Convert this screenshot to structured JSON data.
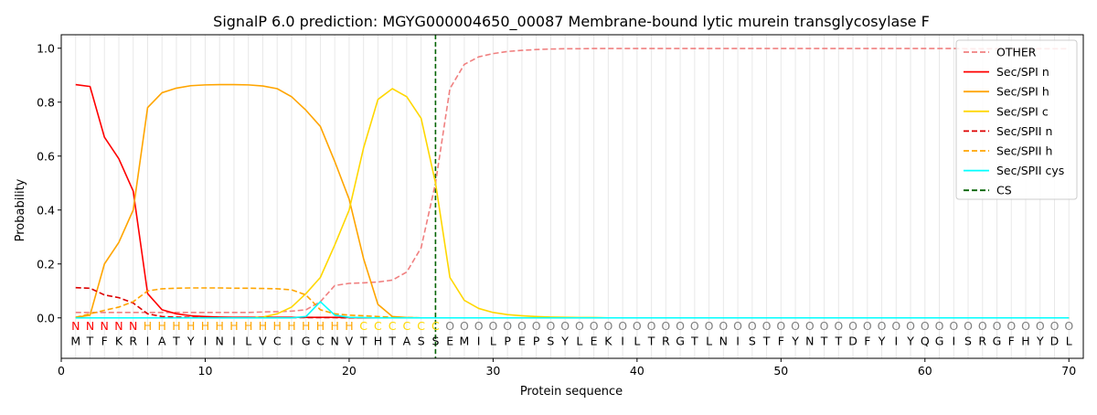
{
  "chart_data": {
    "type": "line",
    "title": "SignalP 6.0 prediction: MGYG000004650_00087 Membrane-bound lytic murein transglycosylase F",
    "xlabel": "Protein sequence",
    "ylabel": "Probability",
    "xlim": [
      0,
      71
    ],
    "ylim": [
      -0.15,
      1.05
    ],
    "xticks": [
      0,
      10,
      20,
      30,
      40,
      50,
      60,
      70
    ],
    "yticks": [
      0.0,
      0.2,
      0.4,
      0.6,
      0.8,
      1.0
    ],
    "xtick_labels": [
      "0",
      "10",
      "20",
      "30",
      "40",
      "50",
      "60",
      "70"
    ],
    "ytick_labels": [
      "0.0",
      "0.2",
      "0.4",
      "0.6",
      "0.8",
      "1.0"
    ],
    "grid": "vertical lines at every residue position",
    "legend_position": "top-right",
    "cleavage_site": 26,
    "sequence": [
      "M",
      "T",
      "F",
      "K",
      "R",
      "I",
      "A",
      "T",
      "Y",
      "I",
      "N",
      "I",
      "L",
      "V",
      "C",
      "I",
      "G",
      "C",
      "N",
      "V",
      "T",
      "H",
      "T",
      "A",
      "S",
      "S",
      "E",
      "M",
      "I",
      "L",
      "P",
      "E",
      "P",
      "S",
      "Y",
      "L",
      "E",
      "K",
      "I",
      "L",
      "T",
      "R",
      "G",
      "T",
      "L",
      "N",
      "I",
      "S",
      "T",
      "F",
      "Y",
      "N",
      "T",
      "T",
      "D",
      "F",
      "Y",
      "I",
      "Y",
      "Q",
      "G",
      "I",
      "S",
      "R",
      "G",
      "F",
      "H",
      "Y",
      "D",
      "L"
    ],
    "region_labels": [
      "N",
      "N",
      "N",
      "N",
      "N",
      "H",
      "H",
      "H",
      "H",
      "H",
      "H",
      "H",
      "H",
      "H",
      "H",
      "H",
      "H",
      "H",
      "H",
      "H",
      "C",
      "C",
      "C",
      "C",
      "C",
      "C",
      "O",
      "O",
      "O",
      "O",
      "O",
      "O",
      "O",
      "O",
      "O",
      "O",
      "O",
      "O",
      "O",
      "O",
      "O",
      "O",
      "O",
      "O",
      "O",
      "O",
      "O",
      "O",
      "O",
      "O",
      "O",
      "O",
      "O",
      "O",
      "O",
      "O",
      "O",
      "O",
      "O",
      "O",
      "O",
      "O",
      "O",
      "O",
      "O",
      "O",
      "O",
      "O",
      "O",
      "O"
    ],
    "region_colors": {
      "N": "#ff0000",
      "H": "#ffa500",
      "C": "#ffd700",
      "O": "#808080"
    },
    "series": [
      {
        "name": "OTHER",
        "color": "#f08080",
        "dash": true,
        "values": [
          0.02,
          0.02,
          0.02,
          0.02,
          0.02,
          0.02,
          0.02,
          0.02,
          0.02,
          0.02,
          0.02,
          0.02,
          0.02,
          0.022,
          0.023,
          0.025,
          0.03,
          0.06,
          0.12,
          0.128,
          0.13,
          0.133,
          0.14,
          0.17,
          0.26,
          0.5,
          0.85,
          0.94,
          0.968,
          0.98,
          0.988,
          0.992,
          0.995,
          0.997,
          0.998,
          0.998,
          0.999,
          0.999,
          0.999,
          0.999,
          0.999,
          0.999,
          0.999,
          0.999,
          0.999,
          0.999,
          0.999,
          0.999,
          0.999,
          0.999,
          0.999,
          0.999,
          0.999,
          0.999,
          0.999,
          0.999,
          0.999,
          0.999,
          0.999,
          0.999,
          0.999,
          0.999,
          0.998,
          0.998,
          0.998,
          0.998,
          0.998,
          0.998,
          0.998,
          0.998
        ]
      },
      {
        "name": "Sec/SPI n",
        "color": "#ff0000",
        "dash": false,
        "values": [
          0.865,
          0.858,
          0.67,
          0.59,
          0.47,
          0.09,
          0.03,
          0.015,
          0.008,
          0.005,
          0.003,
          0.002,
          0.002,
          0.002,
          0.002,
          0.002,
          0.002,
          0.002,
          0.002,
          0.001,
          0,
          0,
          0,
          0,
          0,
          0,
          0,
          0,
          0,
          0,
          0,
          0,
          0,
          0,
          0,
          0,
          0,
          0,
          0,
          0,
          0,
          0,
          0,
          0,
          0,
          0,
          0,
          0,
          0,
          0,
          0,
          0,
          0,
          0,
          0,
          0,
          0,
          0,
          0,
          0,
          0,
          0,
          0,
          0,
          0,
          0,
          0,
          0,
          0,
          0
        ]
      },
      {
        "name": "Sec/SPI h",
        "color": "#ffa500",
        "dash": false,
        "values": [
          0.002,
          0.01,
          0.2,
          0.28,
          0.4,
          0.78,
          0.835,
          0.852,
          0.861,
          0.864,
          0.865,
          0.865,
          0.864,
          0.86,
          0.85,
          0.82,
          0.77,
          0.71,
          0.58,
          0.44,
          0.22,
          0.05,
          0.005,
          0.001,
          0,
          0,
          0,
          0,
          0,
          0,
          0,
          0,
          0,
          0,
          0,
          0,
          0,
          0,
          0,
          0,
          0,
          0,
          0,
          0,
          0,
          0,
          0,
          0,
          0,
          0,
          0,
          0,
          0,
          0,
          0,
          0,
          0,
          0,
          0,
          0,
          0,
          0,
          0,
          0,
          0,
          0,
          0,
          0,
          0,
          0
        ]
      },
      {
        "name": "Sec/SPI c",
        "color": "#ffd700",
        "dash": false,
        "values": [
          0,
          0,
          0,
          0,
          0,
          0,
          0,
          0,
          0,
          0,
          0,
          0,
          0,
          0.003,
          0.015,
          0.04,
          0.09,
          0.15,
          0.27,
          0.4,
          0.63,
          0.81,
          0.85,
          0.82,
          0.74,
          0.5,
          0.15,
          0.065,
          0.035,
          0.02,
          0.012,
          0.008,
          0.005,
          0.003,
          0.002,
          0.001,
          0.001,
          0,
          0,
          0,
          0,
          0,
          0,
          0,
          0,
          0,
          0,
          0,
          0,
          0,
          0,
          0,
          0,
          0,
          0,
          0,
          0,
          0,
          0,
          0,
          0,
          0,
          0,
          0,
          0,
          0,
          0,
          0,
          0,
          0
        ]
      },
      {
        "name": "Sec/SPII n",
        "color": "#dd0000",
        "dash": true,
        "values": [
          0.112,
          0.11,
          0.085,
          0.075,
          0.055,
          0.015,
          0.005,
          0.003,
          0.002,
          0.002,
          0.001,
          0.001,
          0.001,
          0.001,
          0.001,
          0.001,
          0.001,
          0.001,
          0.001,
          0,
          0,
          0,
          0,
          0,
          0,
          0,
          0,
          0,
          0,
          0,
          0,
          0,
          0,
          0,
          0,
          0,
          0,
          0,
          0,
          0,
          0,
          0,
          0,
          0,
          0,
          0,
          0,
          0,
          0,
          0,
          0,
          0,
          0,
          0,
          0,
          0,
          0,
          0,
          0,
          0,
          0,
          0,
          0,
          0,
          0,
          0,
          0,
          0,
          0,
          0
        ]
      },
      {
        "name": "Sec/SPII h",
        "color": "#ffa500",
        "dash": true,
        "values": [
          0.002,
          0.015,
          0.028,
          0.04,
          0.06,
          0.1,
          0.108,
          0.11,
          0.111,
          0.111,
          0.111,
          0.11,
          0.11,
          0.109,
          0.108,
          0.104,
          0.085,
          0.03,
          0.015,
          0.01,
          0.008,
          0.005,
          0.002,
          0.001,
          0,
          0,
          0,
          0,
          0,
          0,
          0,
          0,
          0,
          0,
          0,
          0,
          0,
          0,
          0,
          0,
          0,
          0,
          0,
          0,
          0,
          0,
          0,
          0,
          0,
          0,
          0,
          0,
          0,
          0,
          0,
          0,
          0,
          0,
          0,
          0,
          0,
          0,
          0,
          0,
          0,
          0,
          0,
          0,
          0,
          0
        ]
      },
      {
        "name": "Sec/SPII cys",
        "color": "#00ffff",
        "dash": false,
        "values": [
          0,
          0,
          0,
          0,
          0,
          0,
          0,
          0,
          0,
          0,
          0,
          0,
          0,
          0,
          0,
          0,
          0.005,
          0.06,
          0.01,
          0.002,
          0.001,
          0,
          0,
          0,
          0,
          0,
          0,
          0,
          0,
          0,
          0,
          0,
          0,
          0,
          0,
          0,
          0,
          0,
          0,
          0,
          0,
          0,
          0,
          0,
          0,
          0,
          0,
          0,
          0,
          0,
          0,
          0,
          0,
          0,
          0,
          0,
          0,
          0,
          0,
          0,
          0,
          0,
          0,
          0,
          0,
          0,
          0,
          0,
          0,
          0
        ]
      },
      {
        "name": "CS",
        "color": "#006400",
        "dash": true,
        "values": []
      }
    ]
  }
}
